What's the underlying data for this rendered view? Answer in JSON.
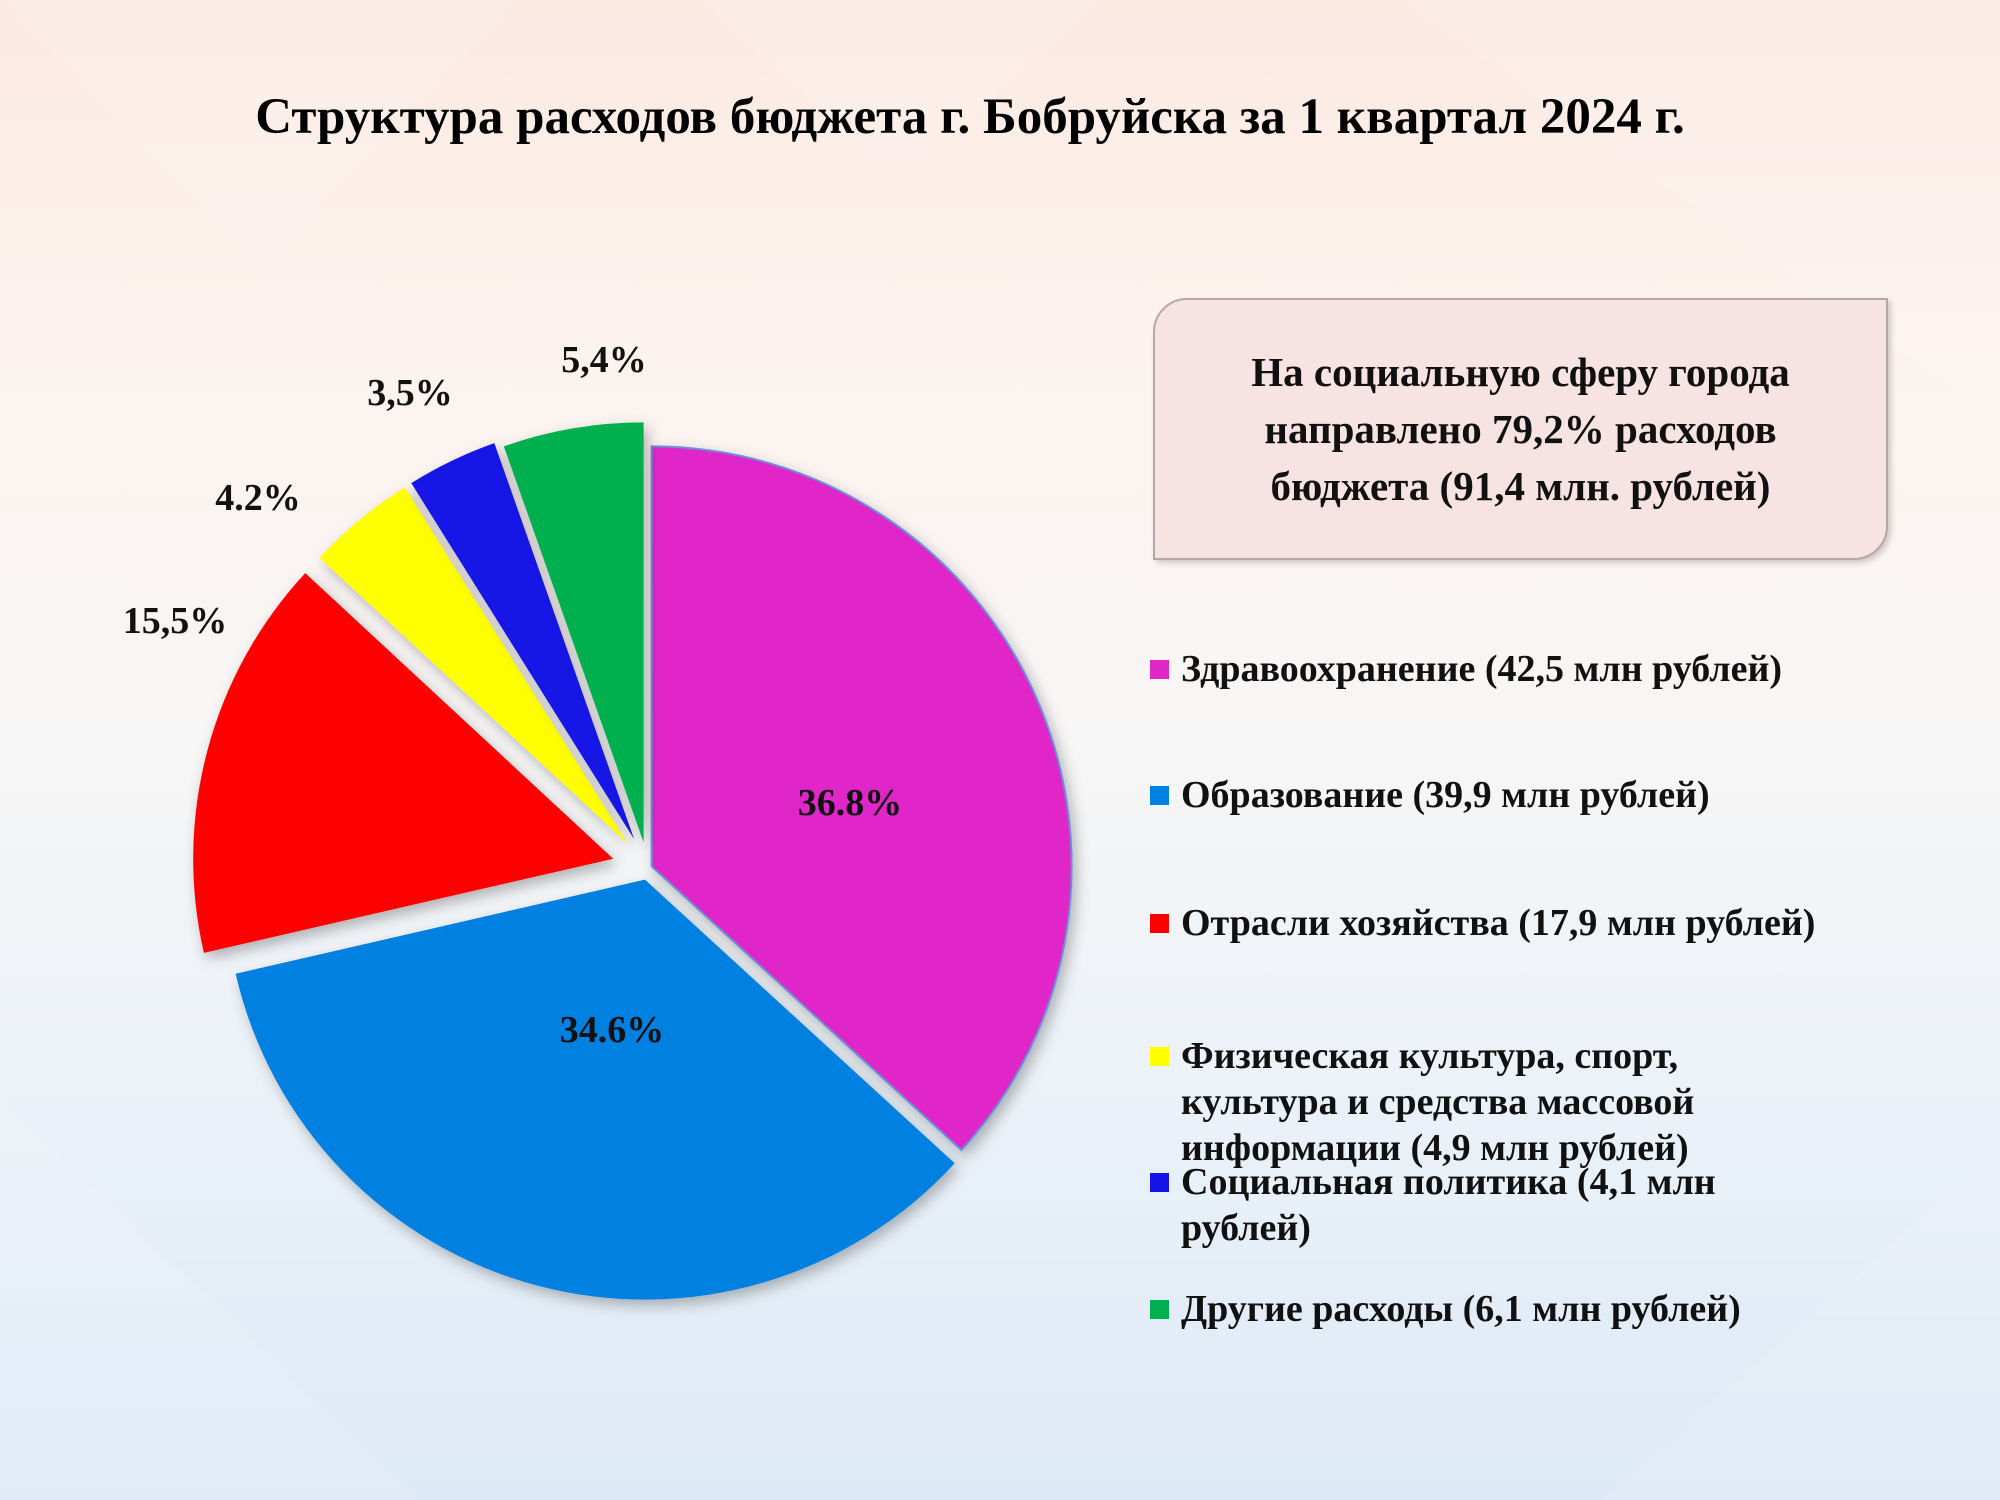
{
  "title": "Структура расходов бюджета г. Бобруйска за 1 квартал 2024 г.",
  "callout": "На социальную сферу города направлено 79,2% расходов бюджета (91,4 млн. рублей)",
  "chart_data": {
    "type": "pie",
    "title": "Структура расходов бюджета г. Бобруйска за 1 квартал 2024 г.",
    "start_angle_deg": 0,
    "direction": "clockwise",
    "exploded": "all slices",
    "slices": [
      {
        "legend": "Здравоохранение (42,5 млн рублей)",
        "value": 36.8,
        "label": "36.8%",
        "color": "#e028c8"
      },
      {
        "legend": "Образование (39,9 млн рублей)",
        "value": 34.6,
        "label": "34.6%",
        "color": "#0080e0"
      },
      {
        "legend": "Отрасли хозяйства (17,9 млн рублей)",
        "value": 15.5,
        "label": "15,5%",
        "color": "#ff0000"
      },
      {
        "legend": "Физическая культура, спорт, культура и средства массовой информации (4,9 млн рублей)",
        "value": 4.2,
        "label": "4.2%",
        "color": "#ffff00"
      },
      {
        "legend": "Социальная политика (4,1 млн рублей)",
        "value": 3.5,
        "label": "3,5%",
        "color": "#1414e6"
      },
      {
        "legend": "Другие расходы (6,1 млн рублей)",
        "value": 5.4,
        "label": "5,4%",
        "color": "#00b050"
      }
    ],
    "legend_position": "right"
  }
}
